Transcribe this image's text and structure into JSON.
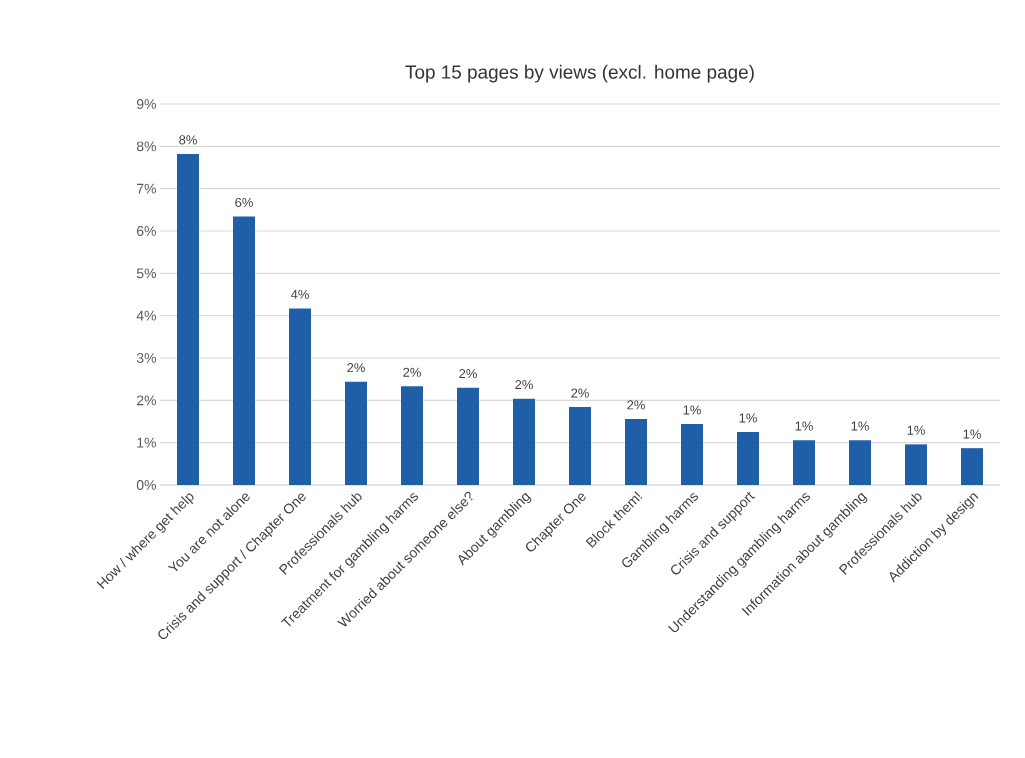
{
  "chart_data": {
    "type": "bar",
    "title": "Top 15 pages by views (excl. home page)",
    "categories": [
      "How / where get help",
      "You are not alone",
      "Crisis and support / Chapter One",
      "Professionals hub",
      "Treatment for gambling harms",
      "Worried about someone else?",
      "About gambling",
      "Chapter One",
      "Block them!",
      "Gambling harms",
      "Crisis and support",
      "Understanding gambling harms",
      "Information about gambling",
      "Professionals hub",
      "Addiction by design"
    ],
    "values": [
      7.82,
      6.34,
      4.17,
      2.44,
      2.33,
      2.3,
      2.04,
      1.84,
      1.56,
      1.44,
      1.25,
      1.06,
      1.06,
      0.96,
      0.87
    ],
    "value_labels": [
      "8%",
      "6%",
      "4%",
      "2%",
      "2%",
      "2%",
      "2%",
      "2%",
      "2%",
      "1%",
      "1%",
      "1%",
      "1%",
      "1%",
      "1%"
    ],
    "color": "#1f5fa8",
    "ylim": [
      0,
      9
    ],
    "yticks": [
      {
        "value": 0,
        "label": "0%"
      },
      {
        "value": 1,
        "label": "1%"
      },
      {
        "value": 2,
        "label": "2%"
      },
      {
        "value": 3,
        "label": "3%"
      },
      {
        "value": 4,
        "label": "4%"
      },
      {
        "value": 5,
        "label": "5%"
      },
      {
        "value": 6,
        "label": "6%"
      },
      {
        "value": 7,
        "label": "7%"
      },
      {
        "value": 8,
        "label": "8%"
      },
      {
        "value": 9,
        "label": "9%"
      }
    ],
    "grid": "y"
  }
}
